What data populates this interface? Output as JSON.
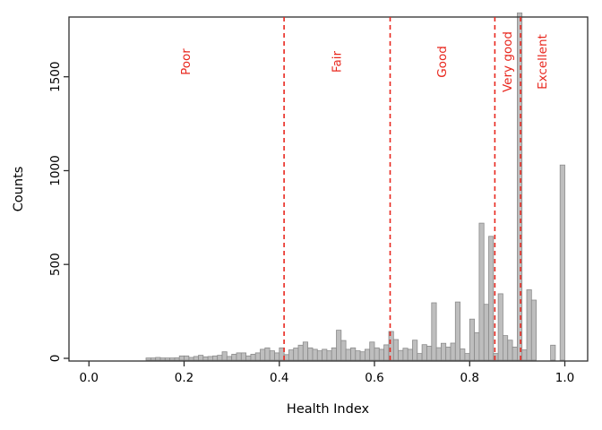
{
  "figure": {
    "background": "#FFFFFF",
    "xlabel": "Health Index",
    "ylabel": "Counts"
  },
  "chart_data": {
    "type": "bar",
    "subtype": "histogram",
    "title": "",
    "xlabel": "Health Index",
    "ylabel": "Counts",
    "grid": false,
    "legend": "none",
    "xlim": [
      -0.04,
      1.05
    ],
    "ylim": [
      0,
      1812
    ],
    "x_ticks": [
      {
        "v": 0.0,
        "label": "0.0"
      },
      {
        "v": 0.2,
        "label": "0.2"
      },
      {
        "v": 0.4,
        "label": "0.4"
      },
      {
        "v": 0.6,
        "label": "0.6"
      },
      {
        "v": 0.8,
        "label": "0.8"
      },
      {
        "v": 1.0,
        "label": "1.0"
      }
    ],
    "y_ticks": [
      {
        "v": 0,
        "label": "0"
      },
      {
        "v": 500,
        "label": "500"
      },
      {
        "v": 1000,
        "label": "1000"
      },
      {
        "v": 1500,
        "label": "1500"
      }
    ],
    "histogram": {
      "bin_width": 0.01,
      "first_bin_start": 0.12,
      "counts": [
        2,
        2,
        5,
        2,
        2,
        2,
        3,
        13,
        13,
        5,
        10,
        16,
        8,
        10,
        13,
        16,
        35,
        10,
        22,
        29,
        29,
        13,
        22,
        29,
        48,
        56,
        40,
        29,
        56,
        20,
        45,
        55,
        70,
        87,
        56,
        48,
        40,
        48,
        40,
        56,
        150,
        95,
        48,
        56,
        40,
        35,
        48,
        87,
        56,
        48,
        72,
        143,
        100,
        42,
        54,
        48,
        97,
        26,
        73,
        65,
        296,
        57,
        80,
        60,
        81,
        300,
        50,
        26,
        209,
        137,
        720,
        288,
        650,
        26,
        344,
        121,
        97,
        60,
        1840,
        45,
        365,
        310,
        0,
        0,
        0,
        70,
        0,
        1030
      ]
    },
    "threshold_lines": [
      0.41,
      0.633,
      0.853,
      0.907
    ],
    "zone_labels": [
      {
        "label": "Poor",
        "x": 0.205
      },
      {
        "label": "Fair",
        "x": 0.522
      },
      {
        "label": "Good",
        "x": 0.743
      },
      {
        "label": "Very good",
        "x": 0.88
      },
      {
        "label": "Excellent",
        "x": 0.954
      }
    ],
    "colors": {
      "bar_fill": "#BEBEBE",
      "bar_stroke": "#8B8B8B",
      "threshold": "#E8271E",
      "axis": "#2E2E2E",
      "text": "#000000"
    }
  }
}
